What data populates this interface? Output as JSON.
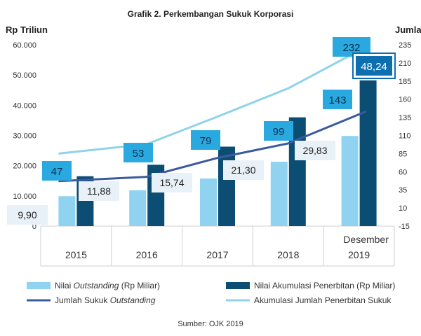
{
  "chart_data": {
    "type": "bar",
    "title": "Grafik 2. Perkembangan Sukuk Korporasi",
    "y_left_label": "Rp Triliun",
    "y_right_label": "Jumlah",
    "categories": [
      "2015",
      "2016",
      "2017",
      "2018",
      "2019"
    ],
    "last_category_prefix": "Desember",
    "y_left": {
      "ticks": [
        "0",
        "10.000",
        "20.000",
        "30.000",
        "40.000",
        "50.000",
        "60.000"
      ],
      "range": [
        0,
        60000
      ]
    },
    "y_right": {
      "ticks": [
        "-15",
        "10",
        "35",
        "60",
        "85",
        "110",
        "135",
        "160",
        "185",
        "210",
        "235"
      ],
      "range": [
        -15,
        235
      ]
    },
    "series": [
      {
        "name": "Nilai Outstanding (Rp Miliar)",
        "axis": "left",
        "kind": "bar",
        "values": [
          9900,
          11880,
          15740,
          21300,
          29830
        ],
        "labels": [
          "9,90",
          "11,88",
          "15,74",
          "21,30",
          "29,83"
        ]
      },
      {
        "name": "Nilai Akumulasi Penerbitan (Rp Miliar)",
        "axis": "left",
        "kind": "bar",
        "values": [
          16500,
          20300,
          26300,
          36000,
          48240
        ],
        "labels": [
          "",
          "",
          "",
          "",
          "48,24"
        ]
      },
      {
        "name": "Jumlah Sukuk Outstanding",
        "axis": "right",
        "kind": "line",
        "values": [
          47,
          53,
          79,
          99,
          143
        ],
        "labels": [
          "47",
          "53",
          "79",
          "99",
          "143"
        ]
      },
      {
        "name": "Akumulasi Jumlah Penerbitan Sukuk",
        "axis": "right",
        "kind": "line",
        "values": [
          85,
          98,
          136,
          175,
          232
        ],
        "labels": [
          "",
          "",
          "",
          "",
          "232"
        ]
      }
    ],
    "legend": [
      {
        "prefix": "Nilai ",
        "italic": "Outstanding",
        "suffix": " (Rp Miliar)"
      },
      {
        "prefix": "Nilai Akumulasi Penerbitan (Rp Miliar)",
        "italic": "",
        "suffix": ""
      },
      {
        "prefix": "Jumlah Sukuk ",
        "italic": "Outstanding",
        "suffix": ""
      },
      {
        "prefix": "Akumulasi Jumlah Penerbitan Sukuk",
        "italic": "",
        "suffix": ""
      }
    ],
    "legend_placement": "bottom",
    "source": "Sumber: OJK 2019",
    "colors": {
      "outstanding_bar": "#8fd3f0",
      "akumulasi_bar": "#0c4e73",
      "jumlah_line": "#3b5a9e",
      "akumulasi_line": "#8fd3ea",
      "label_box": "#2aa9e0",
      "label_box_dark": "#0e6fb0",
      "value_box": "#e9f1f8",
      "grid": "#cfcfcf",
      "text": "#333333"
    }
  }
}
